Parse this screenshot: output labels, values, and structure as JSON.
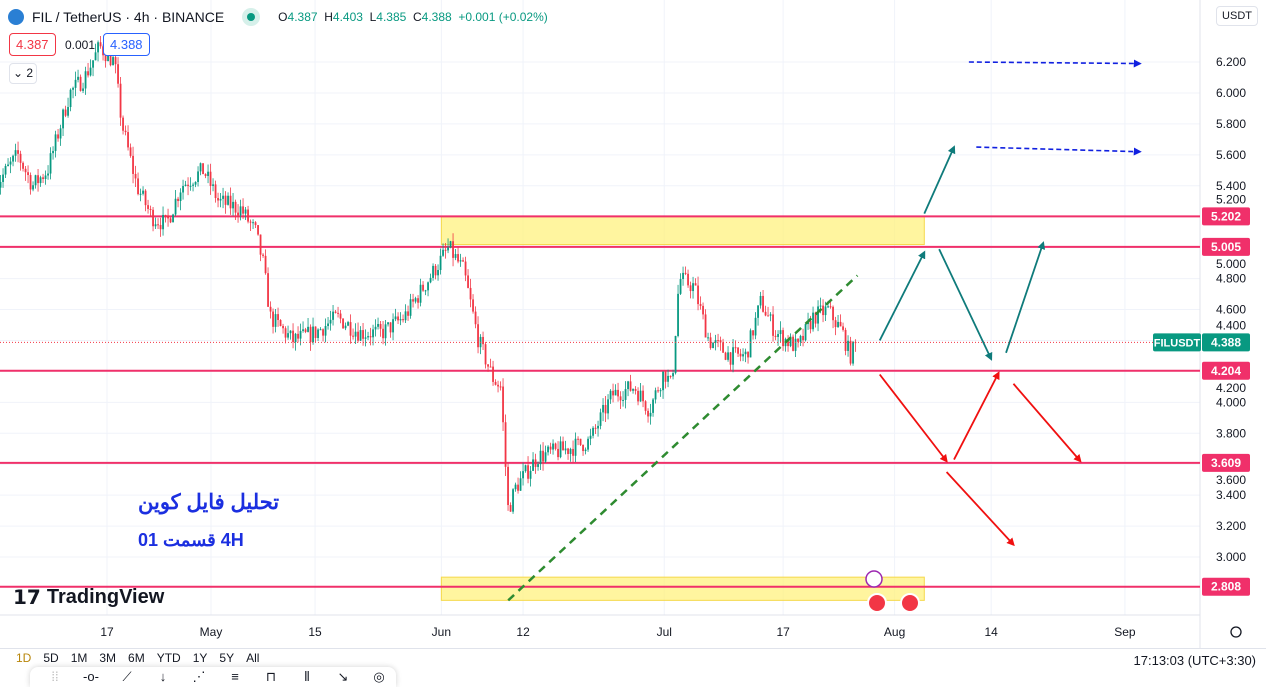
{
  "header": {
    "symbol": "FIL / TetherUS · 4h · BINANCE",
    "ohlc": {
      "o_label": "O",
      "o": "4.387",
      "h_label": "H",
      "h": "4.403",
      "l_label": "L",
      "l": "4.385",
      "c_label": "C",
      "c": "4.388",
      "change": "+0.001 (+0.02%)"
    },
    "sell_price": "4.387",
    "spread": "0.001",
    "buy_price": "4.388",
    "collapse_label": "2"
  },
  "currency_button": "USDT",
  "colors": {
    "up": "#089981",
    "down": "#f23645",
    "level": "#f0306a",
    "zone": "#fff176",
    "trend": "#2e8b30",
    "arrow_teal": "#0f7b7b",
    "arrow_red": "#f01010",
    "arrow_blue": "#1020e0",
    "text_blue": "#1b2fe0"
  },
  "annotations": {
    "title_fa": "تحلیل فایل کوین",
    "subtitle_fa": "4H   قسمت 01"
  },
  "branding": "TradingView",
  "bottom": {
    "ranges": [
      "1D",
      "5D",
      "1M",
      "3M",
      "6M",
      "YTD",
      "1Y",
      "5Y",
      "All"
    ],
    "clock": "17:13:03 (UTC+3:30)"
  },
  "drawing_tools": [
    "drag-handle",
    "horizontal-ray",
    "trend-line",
    "vertical-line",
    "parallel-channel",
    "regression",
    "rectangle",
    "pitchfork",
    "arrow",
    "circle"
  ],
  "chart_data": {
    "type": "candlestick",
    "symbol_label": "FILUSDT",
    "last_price": 4.388,
    "ylim": [
      2.7,
      6.3
    ],
    "y_ticks": [
      "6.200",
      "6.000",
      "5.800",
      "5.600",
      "5.400",
      "5.200",
      "5.000",
      "4.800",
      "4.600",
      "4.400",
      "4.200",
      "4.000",
      "3.800",
      "3.600",
      "3.400",
      "3.200",
      "3.000"
    ],
    "x_ticks": [
      {
        "date": "2024-04-17",
        "label": "17"
      },
      {
        "date": "2024-05-01",
        "label": "May"
      },
      {
        "date": "2024-05-15",
        "label": "15"
      },
      {
        "date": "2024-06-01",
        "label": "Jun"
      },
      {
        "date": "2024-06-12",
        "label": "12"
      },
      {
        "date": "2024-07-01",
        "label": "Jul"
      },
      {
        "date": "2024-07-17",
        "label": "17"
      },
      {
        "date": "2024-08-01",
        "label": "Aug"
      },
      {
        "date": "2024-08-14",
        "label": "14"
      },
      {
        "date": "2024-09-01",
        "label": "Sep"
      }
    ],
    "price_path": [
      [
        "2024-04-02",
        5.4
      ],
      [
        "2024-04-05",
        5.6
      ],
      [
        "2024-04-07",
        5.4
      ],
      [
        "2024-04-09",
        5.5
      ],
      [
        "2024-04-12",
        6.0
      ],
      [
        "2024-04-14",
        6.1
      ],
      [
        "2024-04-16",
        6.3
      ],
      [
        "2024-04-18",
        6.2
      ],
      [
        "2024-04-19",
        5.8
      ],
      [
        "2024-04-21",
        5.4
      ],
      [
        "2024-04-23",
        5.2
      ],
      [
        "2024-04-25",
        5.15
      ],
      [
        "2024-04-27",
        5.4
      ],
      [
        "2024-04-30",
        5.5
      ],
      [
        "2024-05-02",
        5.3
      ],
      [
        "2024-05-05",
        5.25
      ],
      [
        "2024-05-07",
        5.1
      ],
      [
        "2024-05-08",
        4.9
      ],
      [
        "2024-05-09",
        4.55
      ],
      [
        "2024-05-12",
        4.4
      ],
      [
        "2024-05-15",
        4.45
      ],
      [
        "2024-05-18",
        4.55
      ],
      [
        "2024-05-21",
        4.45
      ],
      [
        "2024-05-24",
        4.45
      ],
      [
        "2024-05-27",
        4.55
      ],
      [
        "2024-05-29",
        4.7
      ],
      [
        "2024-05-31",
        4.85
      ],
      [
        "2024-06-02",
        5.0
      ],
      [
        "2024-06-04",
        4.85
      ],
      [
        "2024-06-06",
        4.4
      ],
      [
        "2024-06-08",
        4.15
      ],
      [
        "2024-06-09",
        4.1
      ],
      [
        "2024-06-10",
        3.3
      ],
      [
        "2024-06-11",
        3.45
      ],
      [
        "2024-06-14",
        3.65
      ],
      [
        "2024-06-18",
        3.7
      ],
      [
        "2024-06-21",
        3.75
      ],
      [
        "2024-06-24",
        4.05
      ],
      [
        "2024-06-27",
        4.1
      ],
      [
        "2024-06-29",
        3.95
      ],
      [
        "2024-07-01",
        4.2
      ],
      [
        "2024-07-02",
        4.1
      ],
      [
        "2024-07-03",
        4.8
      ],
      [
        "2024-07-05",
        4.75
      ],
      [
        "2024-07-07",
        4.4
      ],
      [
        "2024-07-10",
        4.3
      ],
      [
        "2024-07-12",
        4.3
      ],
      [
        "2024-07-14",
        4.65
      ],
      [
        "2024-07-16",
        4.45
      ],
      [
        "2024-07-19",
        4.35
      ],
      [
        "2024-07-21",
        4.55
      ],
      [
        "2024-07-23",
        4.6
      ],
      [
        "2024-07-25",
        4.45
      ],
      [
        "2024-07-26",
        4.3
      ],
      [
        "2024-07-27",
        4.388
      ]
    ],
    "levels": [
      {
        "price": 5.202,
        "label": "5.202"
      },
      {
        "price": 5.005,
        "label": "5.005"
      },
      {
        "price": 4.204,
        "label": "4.204"
      },
      {
        "price": 3.609,
        "label": "3.609"
      },
      {
        "price": 2.808,
        "label": "2.808"
      }
    ],
    "zones": [
      {
        "from": "2024-06-01",
        "to": "2024-08-05",
        "low": 5.02,
        "high": 5.2
      },
      {
        "from": "2024-06-01",
        "to": "2024-08-05",
        "low": 2.72,
        "high": 2.87
      }
    ],
    "trendline": [
      [
        "2024-06-10",
        2.72
      ],
      [
        "2024-07-27",
        4.82
      ]
    ],
    "arrows": [
      {
        "color": "teal",
        "from": [
          "2024-07-30",
          4.4
        ],
        "to": [
          "2024-08-05",
          4.97
        ]
      },
      {
        "color": "teal",
        "from": [
          "2024-08-05",
          5.22
        ],
        "to": [
          "2024-08-09",
          5.65
        ]
      },
      {
        "color": "teal",
        "from": [
          "2024-08-07",
          4.99
        ],
        "to": [
          "2024-08-14",
          4.28
        ]
      },
      {
        "color": "teal",
        "from": [
          "2024-08-16",
          4.32
        ],
        "to": [
          "2024-08-21",
          5.03
        ]
      },
      {
        "color": "red",
        "from": [
          "2024-07-30",
          4.18
        ],
        "to": [
          "2024-08-08",
          3.62
        ]
      },
      {
        "color": "red",
        "from": [
          "2024-08-09",
          3.63
        ],
        "to": [
          "2024-08-15",
          4.19
        ]
      },
      {
        "color": "red",
        "from": [
          "2024-08-17",
          4.12
        ],
        "to": [
          "2024-08-26",
          3.62
        ]
      },
      {
        "color": "red",
        "from": [
          "2024-08-08",
          3.55
        ],
        "to": [
          "2024-08-17",
          3.08
        ]
      },
      {
        "color": "blue",
        "from": [
          "2024-08-11",
          6.2
        ],
        "to": [
          "2024-09-03",
          6.19
        ]
      },
      {
        "color": "blue",
        "from": [
          "2024-08-12",
          5.65
        ],
        "to": [
          "2024-09-03",
          5.62
        ]
      }
    ]
  }
}
